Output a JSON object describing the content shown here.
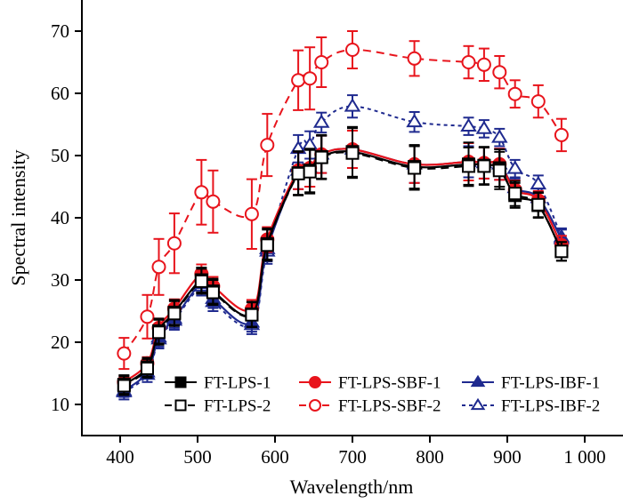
{
  "chart_data": {
    "type": "line",
    "title": "",
    "xlabel": "Wavelength/nm",
    "ylabel": "Spectral intensity",
    "xlim": [
      350,
      1040
    ],
    "ylim": [
      5,
      75
    ],
    "xticks": [
      400,
      500,
      600,
      700,
      800,
      900,
      1000
    ],
    "xtick_labels": [
      "400",
      "500",
      "600",
      "700",
      "800",
      "900",
      "1 000"
    ],
    "yticks": [
      10,
      20,
      30,
      40,
      50,
      60,
      70
    ],
    "ytick_labels": [
      "10",
      "20",
      "30",
      "40",
      "50",
      "60",
      "70"
    ],
    "grid": false,
    "legend_position": "bottom-center",
    "x": [
      405,
      435,
      450,
      470,
      505,
      520,
      570,
      590,
      630,
      645,
      660,
      700,
      780,
      850,
      870,
      890,
      910,
      940,
      970
    ],
    "series": [
      {
        "name": "FT-LPS-1",
        "color": "#000000",
        "marker": "square",
        "filled": true,
        "dash": "solid",
        "values": [
          13.2,
          16.0,
          21.8,
          24.8,
          30.0,
          28.2,
          24.5,
          35.8,
          47.2,
          47.6,
          49.8,
          50.6,
          48.2,
          48.6,
          48.4,
          48.0,
          43.6,
          42.0,
          34.6
        ],
        "errors": [
          1.5,
          1.5,
          2.0,
          2.0,
          2.0,
          2.0,
          2.0,
          2.5,
          3.5,
          3.5,
          3.5,
          4.0,
          3.5,
          3.5,
          3.0,
          3.0,
          2.0,
          2.0,
          1.5
        ]
      },
      {
        "name": "FT-LPS-2",
        "color": "#000000",
        "marker": "square",
        "filled": false,
        "dash": "dashed",
        "values": [
          13.0,
          15.8,
          21.6,
          24.6,
          29.8,
          28.0,
          24.4,
          35.6,
          47.1,
          47.4,
          49.7,
          50.4,
          48.0,
          48.3,
          48.3,
          47.6,
          43.9,
          42.1,
          34.6
        ],
        "errors": [
          1.5,
          1.5,
          2.0,
          2.0,
          2.0,
          2.0,
          2.0,
          2.5,
          3.5,
          3.5,
          3.5,
          4.0,
          3.5,
          3.0,
          3.0,
          3.0,
          2.0,
          2.0,
          1.5
        ]
      },
      {
        "name": "FT-LPS-SBF-1",
        "color": "#e8141c",
        "marker": "circle",
        "filled": true,
        "dash": "solid",
        "values": [
          13.6,
          16.6,
          22.3,
          25.4,
          31.0,
          29.0,
          25.3,
          36.5,
          47.6,
          48.0,
          50.2,
          51.0,
          48.6,
          49.0,
          48.8,
          48.6,
          44.5,
          42.8,
          35.6
        ],
        "errors": [
          1.0,
          1.0,
          1.5,
          1.5,
          1.5,
          1.5,
          1.5,
          2.0,
          3.0,
          3.0,
          3.0,
          3.0,
          3.0,
          3.0,
          2.5,
          2.5,
          1.5,
          1.5,
          1.5
        ]
      },
      {
        "name": "FT-LPS-SBF-2",
        "color": "#e8141c",
        "marker": "circle",
        "filled": false,
        "dash": "dashed",
        "values": [
          18.2,
          24.1,
          32.1,
          35.9,
          44.1,
          42.6,
          40.6,
          51.7,
          62.1,
          62.4,
          65.0,
          67.0,
          65.6,
          65.0,
          64.6,
          63.4,
          59.9,
          58.7,
          53.3
        ],
        "errors": [
          2.5,
          3.5,
          4.5,
          4.8,
          5.2,
          5.0,
          5.6,
          5.0,
          4.8,
          5.0,
          4.0,
          3.0,
          2.8,
          2.6,
          2.6,
          2.6,
          2.2,
          2.6,
          2.6
        ]
      },
      {
        "name": "FT-LPS-IBF-1",
        "color": "#1f2a8f",
        "marker": "triangle",
        "filled": true,
        "dash": "solid",
        "values": [
          12.2,
          15.2,
          20.8,
          23.8,
          29.4,
          27.0,
          23.2,
          35.0,
          47.6,
          48.0,
          50.2,
          51.0,
          48.6,
          49.0,
          48.8,
          48.6,
          44.8,
          43.2,
          36.6
        ],
        "errors": [
          1.0,
          1.0,
          1.5,
          1.5,
          1.5,
          1.5,
          1.5,
          2.0,
          3.0,
          3.0,
          3.0,
          3.0,
          3.0,
          2.5,
          2.5,
          2.5,
          1.5,
          1.5,
          1.5
        ]
      },
      {
        "name": "FT-LPS-IBF-2",
        "color": "#1f2a8f",
        "marker": "triangle",
        "filled": false,
        "dash": "dotted",
        "values": [
          12.0,
          14.8,
          20.5,
          23.5,
          29.0,
          26.5,
          22.8,
          34.6,
          51.1,
          51.7,
          55.3,
          57.9,
          55.4,
          54.7,
          54.3,
          52.9,
          47.9,
          45.4,
          36.9
        ],
        "errors": [
          1.2,
          1.2,
          1.5,
          1.5,
          1.5,
          1.5,
          1.5,
          2.0,
          2.2,
          2.2,
          1.6,
          1.8,
          1.6,
          1.4,
          1.4,
          1.4,
          1.4,
          1.4,
          1.4
        ]
      }
    ]
  }
}
